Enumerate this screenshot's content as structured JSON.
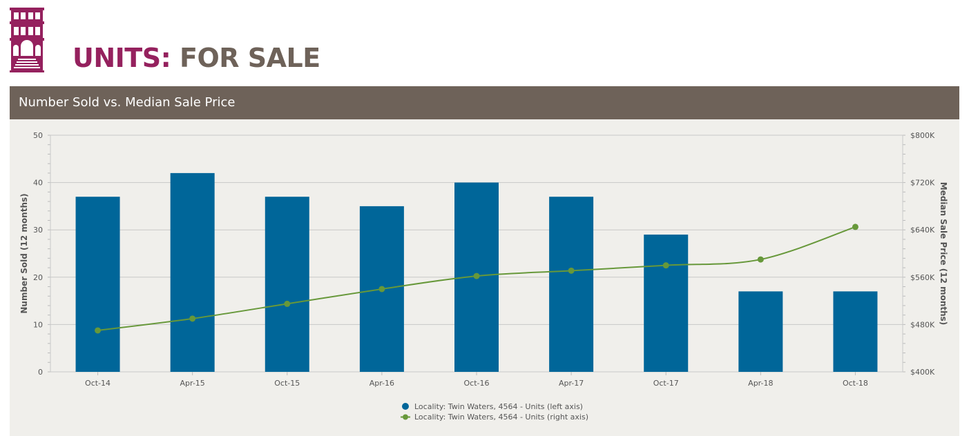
{
  "header": {
    "title_part1": "UNITS:",
    "title_part2": "FOR SALE",
    "logo_icon": "building-icon",
    "logo_color": "#95215e"
  },
  "panel": {
    "title": "Number Sold vs. Median Sale Price"
  },
  "chart_data": {
    "type": "bar+line",
    "categories": [
      "Oct-14",
      "Apr-15",
      "Oct-15",
      "Apr-16",
      "Oct-16",
      "Apr-17",
      "Oct-17",
      "Apr-18",
      "Oct-18"
    ],
    "series": [
      {
        "name": "Locality: Twin Waters, 4564 - Units (left axis)",
        "type": "bar",
        "axis": "left",
        "color": "#006699",
        "values": [
          37,
          42,
          37,
          35,
          40,
          37,
          29,
          17,
          17
        ]
      },
      {
        "name": "Locality: Twin Waters, 4564 - Units (right axis)",
        "type": "line",
        "axis": "right",
        "color": "#67983a",
        "values": [
          470000,
          490000,
          515000,
          540000,
          562000,
          571000,
          580000,
          590000,
          645000
        ]
      }
    ],
    "left_axis": {
      "label": "Number Sold (12 months)",
      "min": 0,
      "max": 50,
      "ticks": [
        0,
        10,
        20,
        30,
        40,
        50
      ]
    },
    "right_axis": {
      "label": "Median Sale Price (12 months)",
      "min": 400000,
      "max": 800000,
      "ticks": [
        400000,
        480000,
        560000,
        640000,
        720000,
        800000
      ],
      "tick_labels": [
        "$400K",
        "$480K",
        "$560K",
        "$640K",
        "$720K",
        "$800K"
      ]
    },
    "grid": true,
    "legend_position": "bottom-center"
  }
}
